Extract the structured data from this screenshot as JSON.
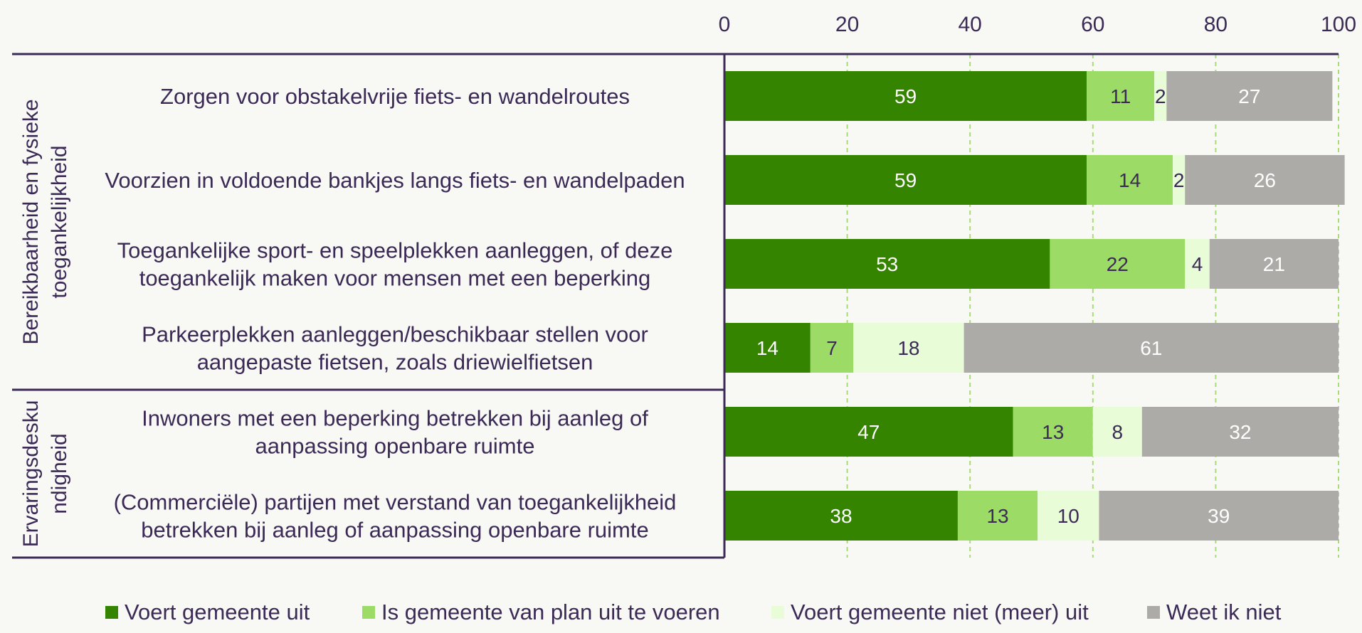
{
  "chart_data": {
    "type": "bar",
    "orientation": "horizontal",
    "stacked": true,
    "xlim": [
      0,
      100
    ],
    "x_ticks": [
      "0",
      "20",
      "40",
      "60",
      "80",
      "100"
    ],
    "grid": true,
    "legend_position": "bottom",
    "groups": [
      {
        "label_lines": [
          "Bereikbaarheid en fysieke",
          "toegankelijkheid"
        ]
      },
      {
        "label_lines": [
          "Ervaringsdesku",
          "ndigheid"
        ]
      }
    ],
    "categories": [
      {
        "lines": [
          "Zorgen voor obstakelvrije fiets- en wandelroutes"
        ],
        "group": 0
      },
      {
        "lines": [
          "Voorzien in voldoende bankjes langs fiets- en wandelpaden"
        ],
        "group": 0
      },
      {
        "lines": [
          "Toegankelijke sport- en speelplekken aanleggen, of deze",
          "toegankelijk maken voor mensen met een beperking"
        ],
        "group": 0
      },
      {
        "lines": [
          "Parkeerplekken aanleggen/beschikbaar stellen voor",
          "aangepaste fietsen, zoals driewielfietsen"
        ],
        "group": 0
      },
      {
        "lines": [
          "Inwoners met een beperking betrekken bij aanleg of",
          "aanpassing openbare ruimte"
        ],
        "group": 1
      },
      {
        "lines": [
          "(Commerciële) partijen met verstand van toegankelijkheid",
          "betrekken bij aanleg of aanpassing openbare ruimte"
        ],
        "group": 1
      }
    ],
    "series": [
      {
        "name": "Voert gemeente uit",
        "color": "#348400",
        "label_color": "#ffffff",
        "values": [
          59,
          59,
          53,
          14,
          47,
          38
        ]
      },
      {
        "name": "Is gemeente van plan uit te voeren",
        "color": "#9cdc66",
        "label_color": "#3b2a56",
        "values": [
          11,
          14,
          22,
          7,
          13,
          13
        ]
      },
      {
        "name": "Voert gemeente niet (meer) uit",
        "color": "#e8fcd8",
        "label_color": "#3b2a56",
        "values": [
          2,
          2,
          4,
          18,
          8,
          10
        ]
      },
      {
        "name": "Weet ik niet",
        "color": "#adaba8",
        "label_color": "#ffffff",
        "values": [
          27,
          26,
          21,
          61,
          32,
          39
        ]
      }
    ],
    "colors": {
      "text": "#3b2a56",
      "axis": "#3b2a56",
      "grid": "#a6de74",
      "background": "#f8f8f4"
    }
  }
}
